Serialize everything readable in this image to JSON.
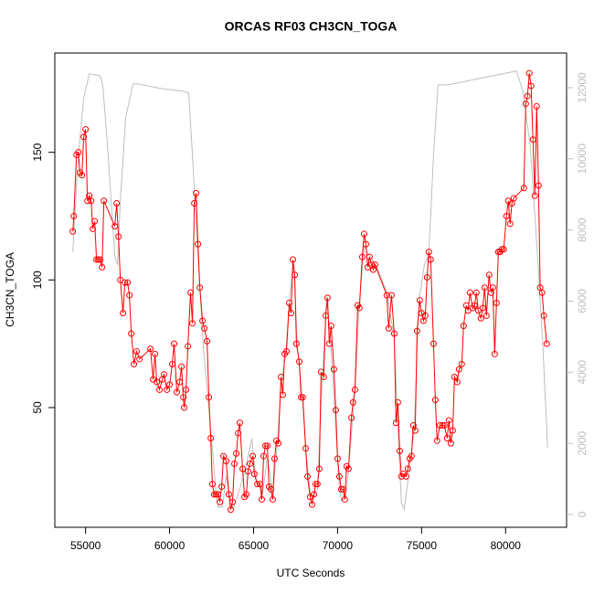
{
  "chart_data": {
    "type": "line",
    "title": "ORCAS RF03 CH3CN_TOGA",
    "xlabel": "UTC Seconds",
    "ylabel": "CH3CN_TOGA",
    "xlim": [
      53170,
      83630
    ],
    "xticks": [
      55000,
      60000,
      65000,
      70000,
      75000,
      80000
    ],
    "ylim": [
      3.1,
      188.9
    ],
    "yticks": [
      50,
      100,
      150
    ],
    "y2lim": [
      -360,
      12976
    ],
    "y2ticks": [
      0,
      2000,
      4000,
      6000,
      8000,
      10000,
      12000
    ],
    "series": [
      {
        "color": "#ff0000",
        "marker": "circle",
        "x": [
          54240,
          54300,
          54460,
          54570,
          54670,
          54780,
          54890,
          55000,
          55110,
          55220,
          55330,
          55430,
          55540,
          55650,
          55760,
          55870,
          55980,
          56090,
          56740,
          56850,
          56960,
          57070,
          57230,
          57340,
          57500,
          57610,
          57720,
          57880,
          58040,
          58210,
          58860,
          59020,
          59130,
          59240,
          59400,
          59560,
          59670,
          59840,
          60000,
          60160,
          60270,
          60430,
          60600,
          60710,
          60820,
          60870,
          60980,
          61090,
          61250,
          61360,
          61470,
          61580,
          61690,
          61800,
          61960,
          62070,
          62230,
          62340,
          62450,
          62550,
          62660,
          62770,
          62880,
          62990,
          63100,
          63210,
          63370,
          63530,
          63640,
          63750,
          63860,
          63970,
          64080,
          64180,
          64350,
          64460,
          64570,
          64670,
          64780,
          64950,
          65050,
          65220,
          65380,
          65490,
          65600,
          65710,
          65820,
          65920,
          66030,
          66140,
          66250,
          66360,
          66470,
          66630,
          66740,
          66850,
          66960,
          67120,
          67230,
          67340,
          67450,
          67550,
          67720,
          67830,
          67930,
          68100,
          68210,
          68370,
          68480,
          68590,
          68700,
          68800,
          68910,
          69020,
          69180,
          69290,
          69400,
          69510,
          69620,
          69780,
          69890,
          70000,
          70110,
          70220,
          70330,
          70430,
          70540,
          70650,
          70820,
          70920,
          71030,
          71200,
          71300,
          71470,
          71580,
          71690,
          71790,
          71900,
          72010,
          72120,
          72230,
          72930,
          73040,
          73210,
          73370,
          73480,
          73590,
          73700,
          73800,
          73910,
          74080,
          74180,
          74290,
          74400,
          74510,
          74620,
          74730,
          74890,
          75000,
          75110,
          75220,
          75330,
          75430,
          75540,
          75710,
          75820,
          75920,
          76090,
          76250,
          76360,
          76520,
          76630,
          76740,
          76850,
          76960,
          77120,
          77230,
          77390,
          77500,
          77660,
          77770,
          77880,
          78040,
          78150,
          78260,
          78370,
          78530,
          78640,
          78750,
          78860,
          79020,
          79130,
          79240,
          79350,
          79460,
          79570,
          79670,
          79780,
          79890,
          80050,
          80160,
          80270,
          80380,
          80490,
          81090,
          81200,
          81300,
          81410,
          81520,
          81630,
          81740,
          81850,
          81960,
          82060,
          82170,
          82280,
          82450
        ],
        "values": [
          119,
          125,
          149,
          150,
          142,
          141,
          156,
          159,
          131,
          133,
          131,
          120,
          123,
          108,
          108,
          108,
          105,
          131,
          121,
          130,
          117,
          100,
          87,
          99,
          99,
          94,
          79,
          67,
          72,
          69,
          73,
          61,
          71,
          60,
          57,
          61,
          63,
          57,
          59,
          67,
          75,
          56,
          60,
          66,
          54,
          50,
          57,
          74,
          95,
          83,
          130,
          134,
          114,
          97,
          84,
          81,
          76,
          54,
          38,
          20,
          16,
          16,
          16,
          13,
          19,
          31,
          29,
          16,
          10,
          13,
          28,
          32,
          40,
          44,
          26,
          15,
          16,
          25,
          28,
          31,
          24,
          20,
          20,
          14,
          31,
          35,
          35,
          19,
          18,
          14,
          30,
          37,
          36,
          62,
          55,
          71,
          72,
          91,
          87,
          108,
          102,
          75,
          68,
          54,
          54,
          34,
          23,
          15,
          12,
          16,
          20,
          20,
          26,
          64,
          62,
          86,
          93,
          75,
          82,
          65,
          49,
          30,
          23,
          18,
          18,
          14,
          27,
          26,
          46,
          52,
          57,
          90,
          89,
          109,
          118,
          114,
          105,
          109,
          106,
          104,
          106,
          94,
          81,
          94,
          79,
          44,
          52,
          33,
          23,
          24,
          23,
          26,
          30,
          31,
          43,
          41,
          80,
          92,
          87,
          84,
          86,
          101,
          111,
          108,
          75,
          53,
          37,
          43,
          43,
          43,
          38,
          45,
          36,
          41,
          62,
          60,
          65,
          67,
          82,
          90,
          88,
          95,
          89,
          90,
          95,
          88,
          85,
          89,
          97,
          86,
          102,
          95,
          97,
          71,
          91,
          111,
          111,
          112,
          112,
          125,
          131,
          122,
          130,
          132,
          136,
          169,
          172,
          181,
          176,
          155,
          133,
          168,
          137,
          97,
          95,
          86,
          75
        ]
      },
      {
        "color": "#bebebe",
        "axis": "y2",
        "x": [
          54240,
          54570,
          54890,
          55220,
          55870,
          56030,
          56310,
          56740,
          56900,
          57070,
          57390,
          57830,
          58100,
          59460,
          60820,
          61140,
          61360,
          61630,
          62010,
          62450,
          62770,
          62880,
          63150,
          63370,
          63530,
          63800,
          64180,
          64510,
          64890,
          65160,
          65540,
          65820,
          66140,
          66410,
          66630,
          66900,
          67170,
          67390,
          67610,
          67880,
          68150,
          68420,
          68800,
          69020,
          69350,
          69570,
          69840,
          70050,
          70220,
          70490,
          70710,
          71030,
          71300,
          71580,
          71900,
          72280,
          72930,
          73370,
          73590,
          73800,
          73970,
          74290,
          74570,
          74840,
          75160,
          75430,
          75710,
          75980,
          76580,
          78750,
          80650,
          81030,
          81470,
          81900,
          82220,
          82500
        ],
        "values": [
          7380,
          10100,
          11700,
          12390,
          12340,
          12030,
          10360,
          7280,
          7020,
          8820,
          11180,
          12110,
          12110,
          11980,
          11900,
          11850,
          10100,
          7790,
          4700,
          2390,
          590,
          210,
          210,
          1100,
          590,
          180,
          720,
          1290,
          2130,
          980,
          590,
          1620,
          590,
          1950,
          3680,
          4450,
          6250,
          7020,
          4700,
          3420,
          1620,
          390,
          720,
          3160,
          6120,
          4960,
          2900,
          1100,
          390,
          460,
          1620,
          3420,
          5990,
          7530,
          7280,
          7020,
          6250,
          4960,
          2390,
          330,
          150,
          1360,
          2390,
          5990,
          7020,
          7280,
          10100,
          12080,
          12080,
          12290,
          12470,
          11900,
          10360,
          7280,
          4700,
          1880
        ]
      }
    ]
  }
}
